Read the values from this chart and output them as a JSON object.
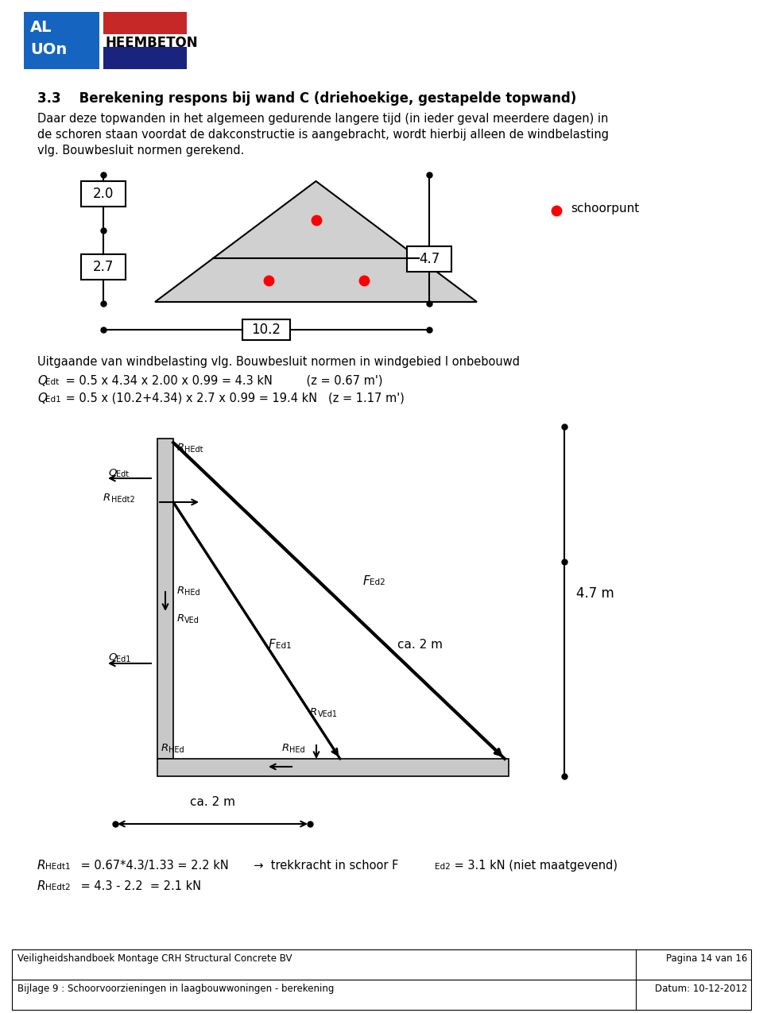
{
  "title_section": "3.3    Berekening respons bij wand C (driehoekige, gestapelde topwand)",
  "body_text1": "Daar deze topwanden in het algemeen gedurende langere tijd (in ieder geval meerdere dagen) in",
  "body_text2": "de schoren staan voordat de dakconstructie is aangebracht, wordt hierbij alleen de windbelasting",
  "body_text3": "vlg. Bouwbesluit normen gerekend.",
  "dim_20": "2.0",
  "dim_27": "2.7",
  "dim_47": "4.7",
  "dim_102": "10.2",
  "legend_text": "schoorpunt",
  "wind_text1": "Uitgaande van windbelasting vlg. Bouwbesluit normen in windgebied I onbebouwd",
  "wind_eq1c": " = 0.5 x 4.34 x 2.00 x 0.99 = 4.3 kN",
  "wind_eq1d": "            (z = 0.67 m')",
  "wind_eq2c": " = 0.5 x (10.2+4.34) x 2.7 x 0.99 = 19.4 kN   (z = 1.17 m')",
  "footer1": "Veiligheidshandboek Montage CRH Structural Concrete BV",
  "footer1r": "Pagina 14 van 16",
  "footer2": "Bijlage 9 : Schoorvoorzieningen in laagbouwwoningen - berekening",
  "footer2r": "Datum: 10-12-2012",
  "bg_color": "#ffffff",
  "light_gray": "#d0d0d0",
  "logo_blue": "#1565C0",
  "logo_red": "#C62828",
  "logo_dark_blue": "#1a237e"
}
